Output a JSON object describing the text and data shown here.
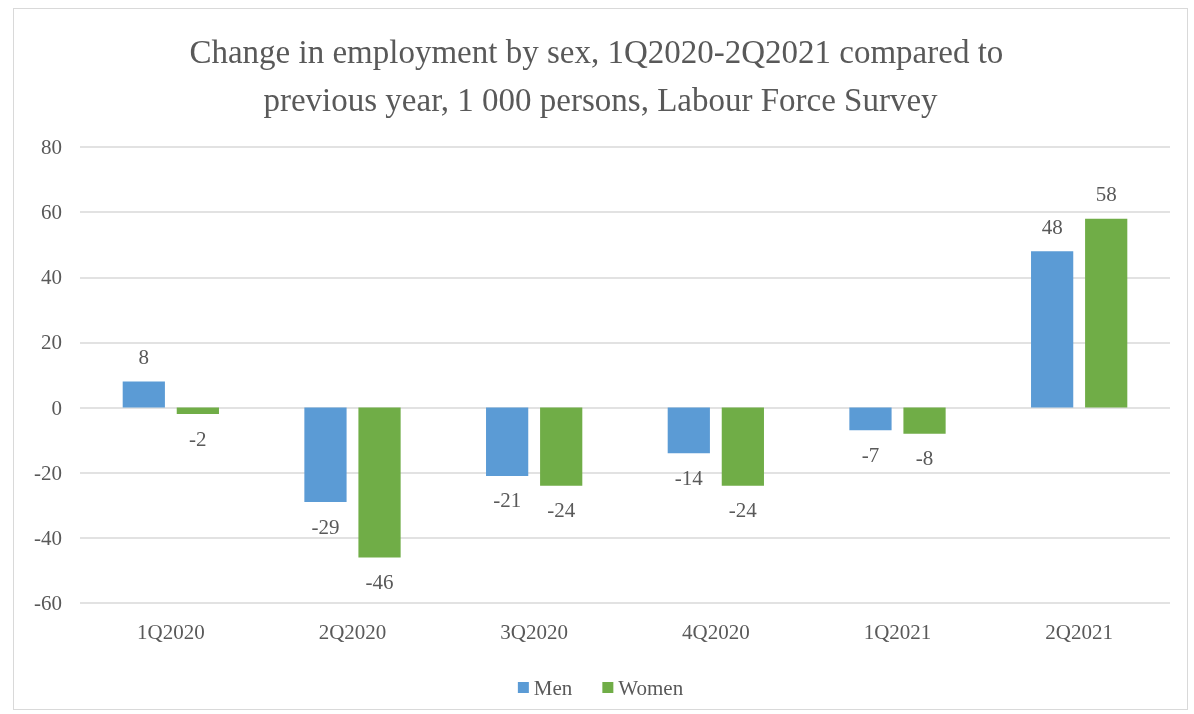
{
  "chart_data": {
    "type": "bar",
    "title": "Change in employment by sex, 1Q2020-2Q2021 compared to previous year, 1 000 persons, Labour Force Survey",
    "categories": [
      "1Q2020",
      "2Q2020",
      "3Q2020",
      "4Q2020",
      "1Q2021",
      "2Q2021"
    ],
    "series": [
      {
        "name": "Men",
        "color": "#5b9bd5",
        "values": [
          8,
          -29,
          -21,
          -14,
          -7,
          48
        ]
      },
      {
        "name": "Women",
        "color": "#70ad47",
        "values": [
          -2,
          -46,
          -24,
          -24,
          -8,
          58
        ]
      }
    ],
    "ylim": [
      -60,
      80
    ],
    "yticks": [
      -60,
      -40,
      -20,
      0,
      20,
      40,
      60,
      80
    ],
    "grid": "y",
    "legend": "bottom",
    "data_labels": true
  }
}
